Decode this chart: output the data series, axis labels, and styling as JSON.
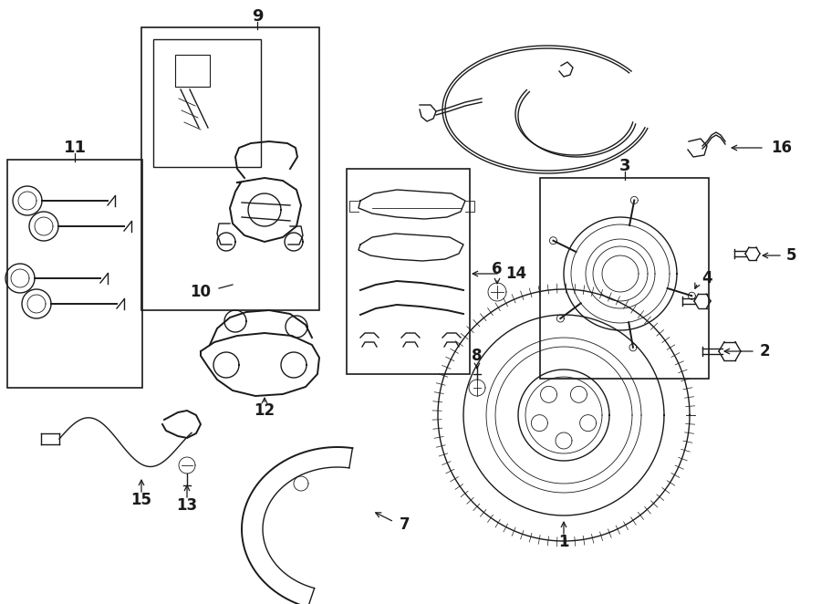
{
  "background_color": "#ffffff",
  "line_color": "#1a1a1a",
  "label_color": "#000000",
  "fig_width": 9.0,
  "fig_height": 6.62,
  "dpi": 100
}
